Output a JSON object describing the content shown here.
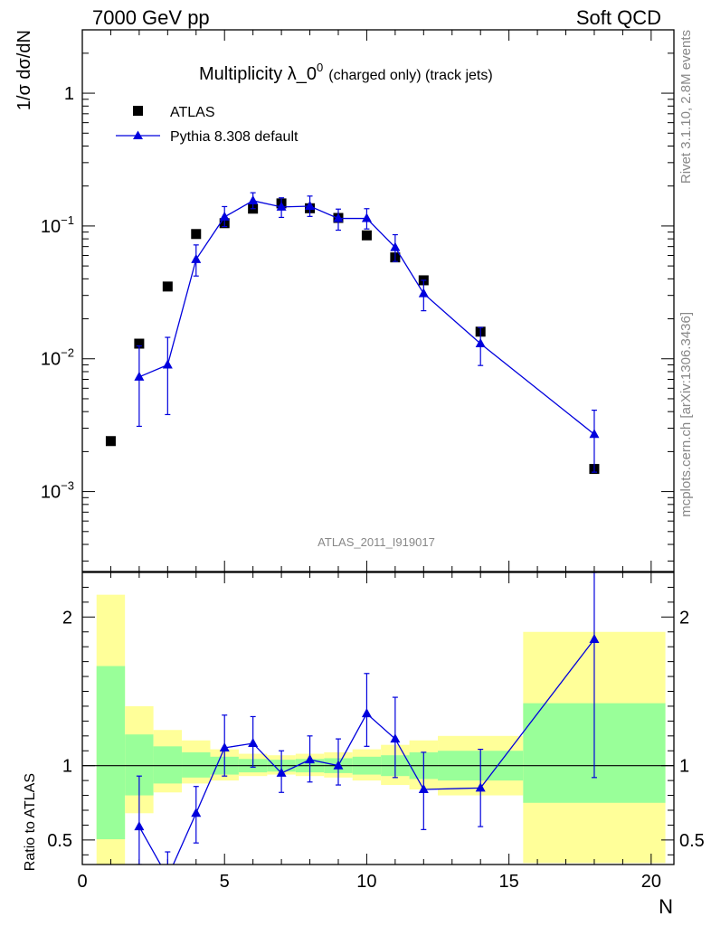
{
  "header": {
    "left": "7000 GeV pp",
    "right": "Soft QCD"
  },
  "plot_title": {
    "main": "Multiplicity λ_0",
    "superscript": "0",
    "suffix": "(charged only) (track jets)"
  },
  "side_labels": {
    "rivet": "Rivet 3.1.10,  2.8M events",
    "mcplots": "mcplots.cern.ch [arXiv:1306.3436]"
  },
  "analysis_id": "ATLAS_2011_I919017",
  "colors": {
    "data": "#000000",
    "mc": "#0000dd",
    "band_inner": "#99ff99",
    "band_outer": "#ffff99"
  },
  "chart_data": [
    {
      "type": "scatter",
      "name": "main",
      "ylabel": "1/σ dσ/dN",
      "yscale": "log",
      "ylim": [
        0.00025,
        3
      ],
      "xlim": [
        0,
        20.8
      ],
      "ytick_labels": [
        {
          "value": 1,
          "base": "1",
          "exp": ""
        },
        {
          "value": 0.1,
          "base": "10",
          "exp": "−1"
        },
        {
          "value": 0.01,
          "base": "10",
          "exp": "−2"
        },
        {
          "value": 0.001,
          "base": "10",
          "exp": "−3"
        }
      ],
      "legend_position": "top-left",
      "series": [
        {
          "name": "ATLAS",
          "marker": "square",
          "points": [
            {
              "x": 1,
              "y": 0.0024
            },
            {
              "x": 2,
              "y": 0.013
            },
            {
              "x": 3,
              "y": 0.035
            },
            {
              "x": 4,
              "y": 0.087
            },
            {
              "x": 5,
              "y": 0.105
            },
            {
              "x": 6,
              "y": 0.135
            },
            {
              "x": 7,
              "y": 0.148
            },
            {
              "x": 8,
              "y": 0.136
            },
            {
              "x": 9,
              "y": 0.115
            },
            {
              "x": 10,
              "y": 0.085
            },
            {
              "x": 11,
              "y": 0.058
            },
            {
              "x": 12,
              "y": 0.039
            },
            {
              "x": 14,
              "y": 0.016
            },
            {
              "x": 18,
              "y": 0.00148
            }
          ]
        },
        {
          "name": "Pythia 8.308 default",
          "marker": "triangle",
          "points": [
            {
              "x": 2,
              "y": 0.0073,
              "lo": 0.0031,
              "hi": 0.0125
            },
            {
              "x": 3,
              "y": 0.009,
              "lo": 0.0038,
              "hi": 0.0145
            },
            {
              "x": 4,
              "y": 0.056,
              "lo": 0.042,
              "hi": 0.072
            },
            {
              "x": 5,
              "y": 0.117,
              "lo": 0.099,
              "hi": 0.14
            },
            {
              "x": 6,
              "y": 0.155,
              "lo": 0.135,
              "hi": 0.178
            },
            {
              "x": 7,
              "y": 0.139,
              "lo": 0.116,
              "hi": 0.163
            },
            {
              "x": 8,
              "y": 0.141,
              "lo": 0.118,
              "hi": 0.168
            },
            {
              "x": 9,
              "y": 0.114,
              "lo": 0.093,
              "hi": 0.134
            },
            {
              "x": 10,
              "y": 0.114,
              "lo": 0.095,
              "hi": 0.135
            },
            {
              "x": 11,
              "y": 0.069,
              "lo": 0.054,
              "hi": 0.086
            },
            {
              "x": 12,
              "y": 0.031,
              "lo": 0.023,
              "hi": 0.039
            },
            {
              "x": 14,
              "y": 0.013,
              "lo": 0.0089,
              "hi": 0.0172
            },
            {
              "x": 18,
              "y": 0.0027,
              "lo": 0.0014,
              "hi": 0.0041
            }
          ]
        }
      ]
    },
    {
      "type": "line",
      "name": "ratio",
      "ylabel": "Ratio to ATLAS",
      "xlabel": "N",
      "ylim": [
        0.335,
        2.3
      ],
      "xlim": [
        0,
        20.8
      ],
      "xticks": [
        0,
        5,
        10,
        15,
        20
      ],
      "yticks": [
        0.5,
        1,
        2
      ],
      "reference_line": 1,
      "bands": [
        {
          "x0": 0.5,
          "x1": 1.5,
          "inner": [
            0.505,
            1.67
          ],
          "outer": [
            0.335,
            2.15
          ]
        },
        {
          "x0": 1.5,
          "x1": 2.5,
          "inner": [
            0.8,
            1.21
          ],
          "outer": [
            0.68,
            1.4
          ]
        },
        {
          "x0": 2.5,
          "x1": 3.5,
          "inner": [
            0.88,
            1.13
          ],
          "outer": [
            0.82,
            1.24
          ]
        },
        {
          "x0": 3.5,
          "x1": 4.5,
          "inner": [
            0.92,
            1.09
          ],
          "outer": [
            0.88,
            1.17
          ]
        },
        {
          "x0": 4.5,
          "x1": 5.5,
          "inner": [
            0.94,
            1.06
          ],
          "outer": [
            0.9,
            1.11
          ]
        },
        {
          "x0": 5.5,
          "x1": 6.5,
          "inner": [
            0.955,
            1.045
          ],
          "outer": [
            0.93,
            1.08
          ]
        },
        {
          "x0": 6.5,
          "x1": 7.5,
          "inner": [
            0.96,
            1.04
          ],
          "outer": [
            0.94,
            1.07
          ]
        },
        {
          "x0": 7.5,
          "x1": 8.5,
          "inner": [
            0.955,
            1.045
          ],
          "outer": [
            0.93,
            1.08
          ]
        },
        {
          "x0": 8.5,
          "x1": 9.5,
          "inner": [
            0.95,
            1.05
          ],
          "outer": [
            0.92,
            1.09
          ]
        },
        {
          "x0": 9.5,
          "x1": 10.5,
          "inner": [
            0.94,
            1.06
          ],
          "outer": [
            0.9,
            1.11
          ]
        },
        {
          "x0": 10.5,
          "x1": 11.5,
          "inner": [
            0.93,
            1.07
          ],
          "outer": [
            0.87,
            1.14
          ]
        },
        {
          "x0": 11.5,
          "x1": 12.5,
          "inner": [
            0.91,
            1.09
          ],
          "outer": [
            0.84,
            1.17
          ]
        },
        {
          "x0": 12.5,
          "x1": 15.5,
          "inner": [
            0.9,
            1.1
          ],
          "outer": [
            0.8,
            1.2
          ]
        },
        {
          "x0": 15.5,
          "x1": 20.5,
          "inner": [
            0.75,
            1.42
          ],
          "outer": [
            0.345,
            1.9
          ]
        }
      ],
      "series": [
        {
          "name": "Pythia 8.308 default",
          "points": [
            {
              "x": 2,
              "y": 0.59,
              "lo": 0.335,
              "hi": 0.93
            },
            {
              "x": 3,
              "y": 0.25,
              "lo": 0.1,
              "hi": 0.42
            },
            {
              "x": 4,
              "y": 0.68,
              "lo": 0.48,
              "hi": 0.86
            },
            {
              "x": 5,
              "y": 1.12,
              "lo": 0.93,
              "hi": 1.34
            },
            {
              "x": 6,
              "y": 1.15,
              "lo": 0.99,
              "hi": 1.33
            },
            {
              "x": 7,
              "y": 0.95,
              "lo": 0.82,
              "hi": 1.1
            },
            {
              "x": 8,
              "y": 1.04,
              "lo": 0.89,
              "hi": 1.2
            },
            {
              "x": 9,
              "y": 1.0,
              "lo": 0.87,
              "hi": 1.18
            },
            {
              "x": 10,
              "y": 1.35,
              "lo": 1.13,
              "hi": 1.62
            },
            {
              "x": 11,
              "y": 1.18,
              "lo": 0.92,
              "hi": 1.46
            },
            {
              "x": 12,
              "y": 0.84,
              "lo": 0.57,
              "hi": 1.09
            },
            {
              "x": 14,
              "y": 0.85,
              "lo": 0.59,
              "hi": 1.11
            },
            {
              "x": 18,
              "y": 1.85,
              "lo": 0.92,
              "hi": 2.3
            }
          ]
        }
      ]
    }
  ]
}
